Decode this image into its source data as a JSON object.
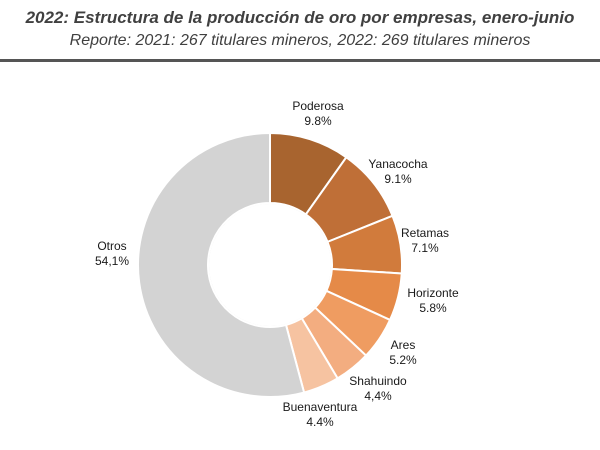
{
  "header": {
    "title": "2022: Estructura de la producción de oro por empresas, enero-junio",
    "subtitle": "Reporte: 2021: 267 titulares mineros, 2022: 269 titulares mineros"
  },
  "chart_data": {
    "type": "pie",
    "variant": "donut",
    "title": "2022: Estructura de la producción de oro por empresas, enero-junio",
    "subtitle": "Reporte: 2021: 267 titulares mineros, 2022: 269 titulares mineros",
    "categories": [
      "Poderosa",
      "Yanacocha",
      "Retamas",
      "Horizonte",
      "Ares",
      "Shahuindo",
      "Buenaventura",
      "Otros"
    ],
    "values": [
      9.8,
      9.1,
      7.1,
      5.8,
      5.2,
      4.4,
      4.4,
      54.1
    ],
    "value_labels": [
      "9.8%",
      "9.1%",
      "7.1%",
      "5.8%",
      "5.2%",
      "4,4%",
      "4.4%",
      "54,1%"
    ],
    "colors": [
      "#a8642f",
      "#bf6f37",
      "#d17b3c",
      "#e58a48",
      "#ef9c61",
      "#f3ad80",
      "#f6c3a1",
      "#d3d3d3"
    ]
  }
}
